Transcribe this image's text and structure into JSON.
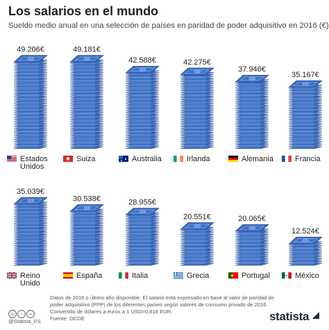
{
  "title": "Los salarios en el mundo",
  "subtitle": "Sueldo medio anual en una selección de países en paridad de poder adquisitivo en 2016 (€)",
  "chart_data": {
    "type": "bar",
    "unit": "€",
    "categories": [
      "Estados Unidos",
      "Suiza",
      "Australia",
      "Irlanda",
      "Alemania",
      "Francia",
      "Reino Unido",
      "España",
      "Italia",
      "Grecia",
      "Portugal",
      "México"
    ],
    "values": [
      49206,
      49181,
      42588,
      42275,
      37946,
      35167,
      35039,
      30538,
      28955,
      20551,
      20065,
      12524
    ],
    "value_labels": [
      "49.206€",
      "49.181€",
      "42.588€",
      "42.275€",
      "37.946€",
      "35.167€",
      "35.039€",
      "30.538€",
      "28.955€",
      "20.551€",
      "20.065€",
      "12.524€"
    ],
    "label_lines": [
      [
        "Estados",
        "Unidos"
      ],
      [
        "Suiza"
      ],
      [
        "Australia"
      ],
      [
        "Irlanda"
      ],
      [
        "Alemania"
      ],
      [
        "Francia"
      ],
      [
        "Reino",
        "Unido"
      ],
      [
        "España"
      ],
      [
        "Italia"
      ],
      [
        "Grecia"
      ],
      [
        "Portugal"
      ],
      [
        "México"
      ]
    ],
    "flags": [
      "flag-us-icon",
      "flag-ch-icon",
      "flag-au-icon",
      "flag-ie-icon",
      "flag-de-icon",
      "flag-fr-icon",
      "flag-gb-icon",
      "flag-es-icon",
      "flag-it-icon",
      "flag-gr-icon",
      "flag-pt-icon",
      "flag-mx-icon"
    ],
    "rows": 2,
    "per_row": 6,
    "ylim": [
      0,
      50000
    ]
  },
  "colors": {
    "bill": "#3d6fc2",
    "bill_edge": "#1e3f8a",
    "bill_light": "#8fb4ea"
  },
  "footnote": {
    "text": "Datos de 2016 o último año disponible. El salario está expresado en base al valor de paridad de poder adquisitivo (PPP) de los diferentes países según valores de consumo privado de 2016.  Convertido de dólares a euros a 1 USD=0,818  EUR.",
    "source": "Fuente: OCDE"
  },
  "handle": "@Statista_ES",
  "brand": "statista"
}
